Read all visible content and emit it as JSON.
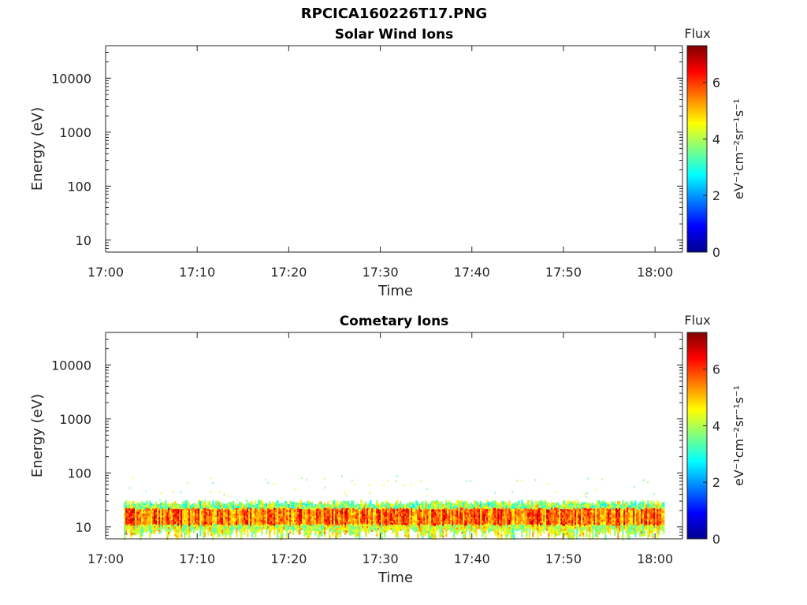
{
  "figure_title": "RPCICA160226T17.PNG",
  "chart_data": [
    {
      "type": "heatmap",
      "title": "Solar Wind Ions",
      "xlabel": "Time",
      "ylabel": "Energy (eV)",
      "x_ticks": [
        "17:00",
        "17:10",
        "17:20",
        "17:30",
        "17:40",
        "17:50",
        "18:00"
      ],
      "xlim": [
        "17:00",
        "18:03"
      ],
      "y_scale": "log",
      "y_ticks": [
        "10",
        "100",
        "1000",
        "10000"
      ],
      "ylim": [
        6,
        40000
      ],
      "colorbar": {
        "label": "Flux",
        "units": "eV⁻¹cm⁻²sr⁻¹s⁻¹",
        "ticks": [
          "0",
          "2",
          "4",
          "6"
        ],
        "range": [
          0,
          7.3
        ],
        "colormap": "jet"
      },
      "data": []
    },
    {
      "type": "heatmap",
      "title": "Cometary Ions",
      "xlabel": "Time",
      "ylabel": "Energy (eV)",
      "x_ticks": [
        "17:00",
        "17:10",
        "17:20",
        "17:30",
        "17:40",
        "17:50",
        "18:00"
      ],
      "xlim": [
        "17:00",
        "18:03"
      ],
      "y_scale": "log",
      "y_ticks": [
        "10",
        "100",
        "1000",
        "10000"
      ],
      "ylim": [
        6,
        40000
      ],
      "colorbar": {
        "label": "Flux",
        "units": "eV⁻¹cm⁻²sr⁻¹s⁻¹",
        "ticks": [
          "0",
          "2",
          "4",
          "6"
        ],
        "range": [
          0,
          7.3
        ],
        "colormap": "jet"
      },
      "band": {
        "time_start": "17:02",
        "time_end": "18:01",
        "energy_min": 6,
        "energy_max": 30,
        "core_energy_min": 11,
        "core_energy_max": 22,
        "peak_flux": 6.8
      }
    }
  ]
}
